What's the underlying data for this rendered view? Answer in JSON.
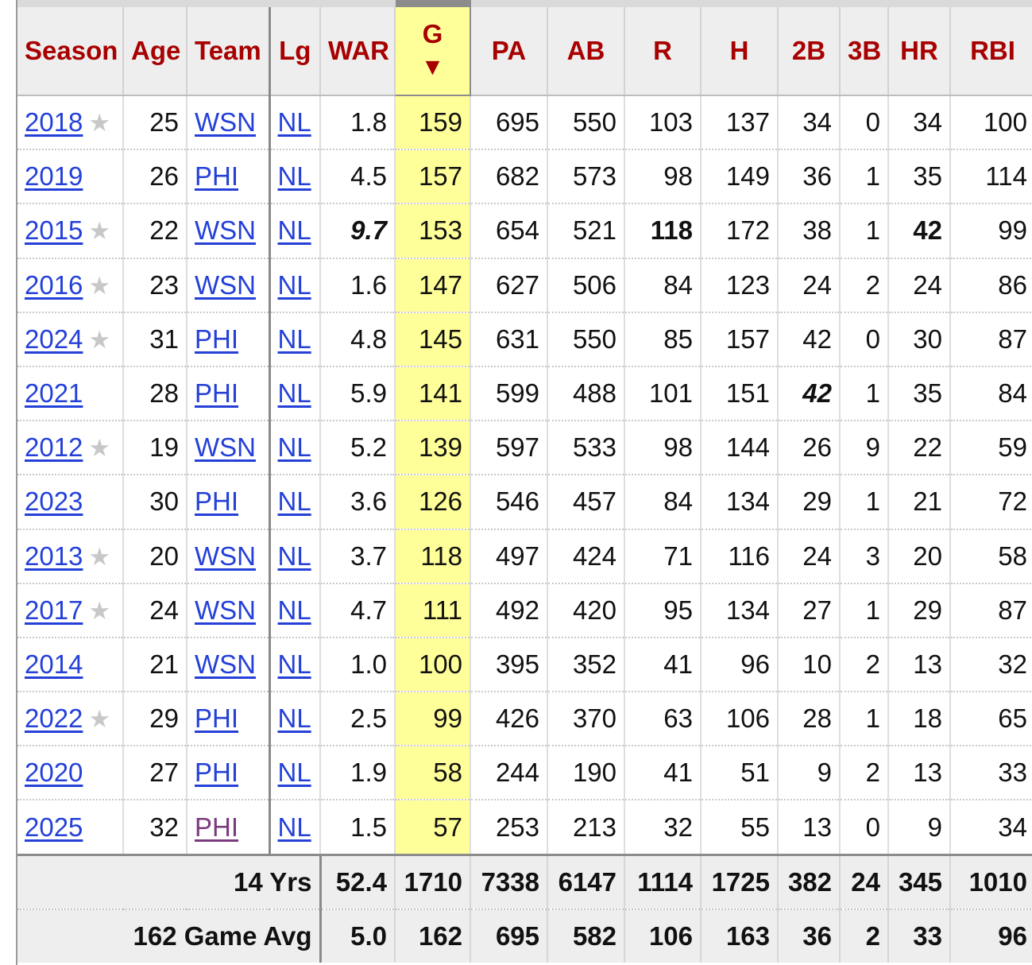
{
  "headers": [
    "Season",
    "Age",
    "Team",
    "Lg",
    "WAR",
    "G",
    "PA",
    "AB",
    "R",
    "H",
    "2B",
    "3B",
    "HR",
    "RBI"
  ],
  "sort_indicator": "▼",
  "star_glyph": "★",
  "rows": [
    {
      "season": "2018",
      "star": true,
      "age": "25",
      "team": "WSN",
      "lg": "NL",
      "war": "1.8",
      "g": "159",
      "pa": "695",
      "ab": "550",
      "r": "103",
      "h": "137",
      "b2": "34",
      "b3": "0",
      "hr": "34",
      "rbi": "100"
    },
    {
      "season": "2019",
      "star": false,
      "age": "26",
      "team": "PHI",
      "lg": "NL",
      "war": "4.5",
      "g": "157",
      "pa": "682",
      "ab": "573",
      "r": "98",
      "h": "149",
      "b2": "36",
      "b3": "1",
      "hr": "35",
      "rbi": "114"
    },
    {
      "season": "2015",
      "star": true,
      "age": "22",
      "team": "WSN",
      "lg": "NL",
      "war": "9.7",
      "g": "153",
      "pa": "654",
      "ab": "521",
      "r": "118",
      "h": "172",
      "b2": "38",
      "b3": "1",
      "hr": "42",
      "rbi": "99"
    },
    {
      "season": "2016",
      "star": true,
      "age": "23",
      "team": "WSN",
      "lg": "NL",
      "war": "1.6",
      "g": "147",
      "pa": "627",
      "ab": "506",
      "r": "84",
      "h": "123",
      "b2": "24",
      "b3": "2",
      "hr": "24",
      "rbi": "86"
    },
    {
      "season": "2024",
      "star": true,
      "age": "31",
      "team": "PHI",
      "lg": "NL",
      "war": "4.8",
      "g": "145",
      "pa": "631",
      "ab": "550",
      "r": "85",
      "h": "157",
      "b2": "42",
      "b3": "0",
      "hr": "30",
      "rbi": "87"
    },
    {
      "season": "2021",
      "star": false,
      "age": "28",
      "team": "PHI",
      "lg": "NL",
      "war": "5.9",
      "g": "141",
      "pa": "599",
      "ab": "488",
      "r": "101",
      "h": "151",
      "b2": "42",
      "b3": "1",
      "hr": "35",
      "rbi": "84"
    },
    {
      "season": "2012",
      "star": true,
      "age": "19",
      "team": "WSN",
      "lg": "NL",
      "war": "5.2",
      "g": "139",
      "pa": "597",
      "ab": "533",
      "r": "98",
      "h": "144",
      "b2": "26",
      "b3": "9",
      "hr": "22",
      "rbi": "59"
    },
    {
      "season": "2023",
      "star": false,
      "age": "30",
      "team": "PHI",
      "lg": "NL",
      "war": "3.6",
      "g": "126",
      "pa": "546",
      "ab": "457",
      "r": "84",
      "h": "134",
      "b2": "29",
      "b3": "1",
      "hr": "21",
      "rbi": "72"
    },
    {
      "season": "2013",
      "star": true,
      "age": "20",
      "team": "WSN",
      "lg": "NL",
      "war": "3.7",
      "g": "118",
      "pa": "497",
      "ab": "424",
      "r": "71",
      "h": "116",
      "b2": "24",
      "b3": "3",
      "hr": "20",
      "rbi": "58"
    },
    {
      "season": "2017",
      "star": true,
      "age": "24",
      "team": "WSN",
      "lg": "NL",
      "war": "4.7",
      "g": "111",
      "pa": "492",
      "ab": "420",
      "r": "95",
      "h": "134",
      "b2": "27",
      "b3": "1",
      "hr": "29",
      "rbi": "87"
    },
    {
      "season": "2014",
      "star": false,
      "age": "21",
      "team": "WSN",
      "lg": "NL",
      "war": "1.0",
      "g": "100",
      "pa": "395",
      "ab": "352",
      "r": "41",
      "h": "96",
      "b2": "10",
      "b3": "2",
      "hr": "13",
      "rbi": "32"
    },
    {
      "season": "2022",
      "star": true,
      "age": "29",
      "team": "PHI",
      "lg": "NL",
      "war": "2.5",
      "g": "99",
      "pa": "426",
      "ab": "370",
      "r": "63",
      "h": "106",
      "b2": "28",
      "b3": "1",
      "hr": "18",
      "rbi": "65"
    },
    {
      "season": "2020",
      "star": false,
      "age": "27",
      "team": "PHI",
      "lg": "NL",
      "war": "1.9",
      "g": "58",
      "pa": "244",
      "ab": "190",
      "r": "41",
      "h": "51",
      "b2": "9",
      "b3": "2",
      "hr": "13",
      "rbi": "33"
    },
    {
      "season": "2025",
      "star": false,
      "age": "32",
      "team": "PHI",
      "lg": "NL",
      "war": "1.5",
      "g": "57",
      "pa": "253",
      "ab": "213",
      "r": "32",
      "h": "55",
      "b2": "13",
      "b3": "0",
      "hr": "9",
      "rbi": "34"
    }
  ],
  "totals": [
    {
      "label": "14 Yrs",
      "war": "52.4",
      "g": "1710",
      "pa": "7338",
      "ab": "6147",
      "r": "1114",
      "h": "1725",
      "b2": "382",
      "b3": "24",
      "hr": "345",
      "rbi": "1010"
    },
    {
      "label": "162 Game Avg",
      "war": "5.0",
      "g": "162",
      "pa": "695",
      "ab": "582",
      "r": "106",
      "h": "163",
      "b2": "36",
      "b3": "2",
      "hr": "33",
      "rbi": "96"
    }
  ],
  "colors": {
    "header_text": "#a80000",
    "link": "#2440d8",
    "visited_link": "#7b3a7e",
    "sorted_column": "#ffff99",
    "star": "#c8c8c8"
  }
}
